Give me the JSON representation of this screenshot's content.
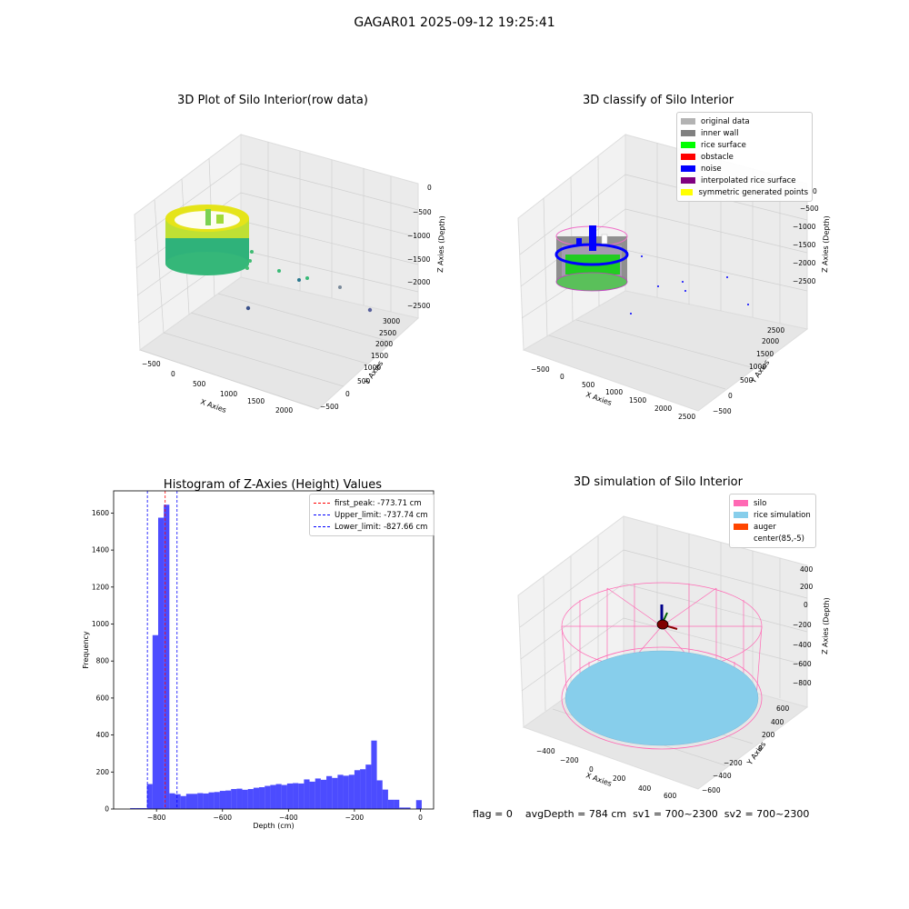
{
  "title": "GAGAR01 2025-09-12 19:25:41",
  "panels": {
    "raw": {
      "title": "3D Plot of Silo Interior(row data)",
      "xlabel": "X Axies",
      "ylabel": "Y Axies",
      "zlabel": "Z Axies (Depth)",
      "xticks": [
        "−500",
        "0",
        "500",
        "1000",
        "1500",
        "2000"
      ],
      "yticks": [
        "−500",
        "0",
        "500",
        "1000",
        "1500",
        "2000",
        "2500",
        "3000"
      ],
      "zticks": [
        "0",
        "−500",
        "−1000",
        "−1500",
        "−2000",
        "−2500"
      ]
    },
    "classify": {
      "title": "3D classify of Silo Interior",
      "xlabel": "X Axies",
      "ylabel": "Y Axies",
      "zlabel": "Z Axies (Depth)",
      "xticks": [
        "−500",
        "0",
        "500",
        "1000",
        "1500",
        "2000",
        "2500"
      ],
      "yticks": [
        "−500",
        "0",
        "500",
        "1000",
        "1500",
        "2000",
        "2500"
      ],
      "zticks": [
        "0",
        "−500",
        "−1000",
        "−1500",
        "−2000",
        "−2500"
      ],
      "legend": [
        {
          "label": "original data",
          "color": "#b3b3b3"
        },
        {
          "label": "inner wall",
          "color": "#808080"
        },
        {
          "label": "rice surface",
          "color": "#00ff00"
        },
        {
          "label": "obstacle",
          "color": "#ff0000"
        },
        {
          "label": "noise",
          "color": "#0000ff"
        },
        {
          "label": "interpolated rice surface",
          "color": "#800080"
        },
        {
          "label": "symmetric generated points",
          "color": "#ffff00"
        }
      ]
    },
    "simulation": {
      "title": "3D simulation of Silo Interior",
      "xlabel": "X Axies",
      "ylabel": "Y Axies",
      "zlabel": "Z Axies (Depth)",
      "xticks": [
        "−400",
        "−200",
        "0",
        "200",
        "400",
        "600"
      ],
      "yticks": [
        "−600",
        "−400",
        "−200",
        "0",
        "200",
        "400",
        "600"
      ],
      "zticks": [
        "400",
        "200",
        "0",
        "−200",
        "−400",
        "−600",
        "−800"
      ],
      "legend": [
        {
          "label": "silo",
          "color": "#ff69b4"
        },
        {
          "label": "rice simulation",
          "color": "#87ceeb"
        },
        {
          "label": "auger",
          "color": "#ff4500"
        },
        {
          "label": "center(85,-5)",
          "color": "#ffffff"
        }
      ]
    }
  },
  "footer": {
    "flag": "flag = 0",
    "avg": "avgDepth = 784 cm",
    "sv1": "sv1 = 700~2300",
    "sv2": "sv2 = 700~2300"
  },
  "chart_data": [
    {
      "type": "bar",
      "title": "Histogram of Z-Axies (Height) Values",
      "xlabel": "Depth (cm)",
      "ylabel": "Frequency",
      "xlim": [
        -930,
        40
      ],
      "ylim": [
        0,
        1720
      ],
      "xticks": [
        -800,
        -600,
        -400,
        -200,
        0
      ],
      "yticks": [
        0,
        200,
        400,
        600,
        800,
        1000,
        1200,
        1400,
        1600
      ],
      "bar_color": "#0000ff",
      "bins": [
        {
          "x0": -880,
          "x1": -863,
          "count": 5
        },
        {
          "x0": -863,
          "x1": -846,
          "count": 5
        },
        {
          "x0": -846,
          "x1": -829,
          "count": 5
        },
        {
          "x0": -829,
          "x1": -812,
          "count": 135
        },
        {
          "x0": -812,
          "x1": -795,
          "count": 940
        },
        {
          "x0": -795,
          "x1": -778,
          "count": 1575
        },
        {
          "x0": -778,
          "x1": -761,
          "count": 1645
        },
        {
          "x0": -761,
          "x1": -744,
          "count": 85
        },
        {
          "x0": -744,
          "x1": -727,
          "count": 80
        },
        {
          "x0": -727,
          "x1": -710,
          "count": 70
        },
        {
          "x0": -710,
          "x1": -693,
          "count": 82
        },
        {
          "x0": -693,
          "x1": -676,
          "count": 82
        },
        {
          "x0": -676,
          "x1": -659,
          "count": 86
        },
        {
          "x0": -659,
          "x1": -642,
          "count": 84
        },
        {
          "x0": -642,
          "x1": -625,
          "count": 90
        },
        {
          "x0": -625,
          "x1": -608,
          "count": 92
        },
        {
          "x0": -608,
          "x1": -591,
          "count": 98
        },
        {
          "x0": -591,
          "x1": -574,
          "count": 100
        },
        {
          "x0": -574,
          "x1": -557,
          "count": 108
        },
        {
          "x0": -557,
          "x1": -540,
          "count": 110
        },
        {
          "x0": -540,
          "x1": -523,
          "count": 104
        },
        {
          "x0": -523,
          "x1": -506,
          "count": 108
        },
        {
          "x0": -506,
          "x1": -489,
          "count": 115
        },
        {
          "x0": -489,
          "x1": -472,
          "count": 118
        },
        {
          "x0": -472,
          "x1": -455,
          "count": 125
        },
        {
          "x0": -455,
          "x1": -438,
          "count": 130
        },
        {
          "x0": -438,
          "x1": -421,
          "count": 135
        },
        {
          "x0": -421,
          "x1": -404,
          "count": 130
        },
        {
          "x0": -404,
          "x1": -387,
          "count": 138
        },
        {
          "x0": -387,
          "x1": -370,
          "count": 140
        },
        {
          "x0": -370,
          "x1": -353,
          "count": 138
        },
        {
          "x0": -353,
          "x1": -336,
          "count": 160
        },
        {
          "x0": -336,
          "x1": -319,
          "count": 148
        },
        {
          "x0": -319,
          "x1": -302,
          "count": 165
        },
        {
          "x0": -302,
          "x1": -285,
          "count": 158
        },
        {
          "x0": -285,
          "x1": -268,
          "count": 178
        },
        {
          "x0": -268,
          "x1": -251,
          "count": 168
        },
        {
          "x0": -251,
          "x1": -234,
          "count": 185
        },
        {
          "x0": -234,
          "x1": -217,
          "count": 180
        },
        {
          "x0": -217,
          "x1": -200,
          "count": 185
        },
        {
          "x0": -200,
          "x1": -183,
          "count": 210
        },
        {
          "x0": -183,
          "x1": -166,
          "count": 215
        },
        {
          "x0": -166,
          "x1": -149,
          "count": 240
        },
        {
          "x0": -149,
          "x1": -132,
          "count": 370
        },
        {
          "x0": -132,
          "x1": -115,
          "count": 155
        },
        {
          "x0": -115,
          "x1": -98,
          "count": 105
        },
        {
          "x0": -98,
          "x1": -81,
          "count": 50
        },
        {
          "x0": -81,
          "x1": -64,
          "count": 50
        },
        {
          "x0": -64,
          "x1": -47,
          "count": 8
        },
        {
          "x0": -47,
          "x1": -30,
          "count": 8
        },
        {
          "x0": -13,
          "x1": 4,
          "count": 48
        }
      ],
      "vlines": [
        {
          "label": "first_peak: -773.71 cm",
          "x": -773.71,
          "color": "#ff0000"
        },
        {
          "label": "Upper_limit: -737.74 cm",
          "x": -737.74,
          "color": "#0000ff"
        },
        {
          "label": "Lower_limit: -827.66 cm",
          "x": -827.66,
          "color": "#0000ff"
        }
      ],
      "legend_position": "upper-right"
    }
  ]
}
